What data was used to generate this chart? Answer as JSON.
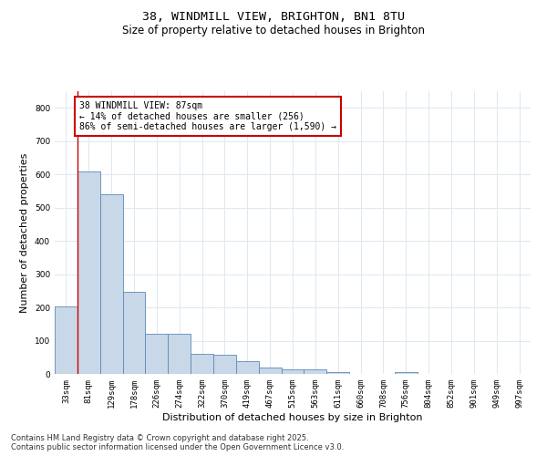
{
  "title_line1": "38, WINDMILL VIEW, BRIGHTON, BN1 8TU",
  "title_line2": "Size of property relative to detached houses in Brighton",
  "xlabel": "Distribution of detached houses by size in Brighton",
  "ylabel": "Number of detached properties",
  "categories": [
    "33sqm",
    "81sqm",
    "129sqm",
    "178sqm",
    "226sqm",
    "274sqm",
    "322sqm",
    "370sqm",
    "419sqm",
    "467sqm",
    "515sqm",
    "563sqm",
    "611sqm",
    "660sqm",
    "708sqm",
    "756sqm",
    "804sqm",
    "852sqm",
    "901sqm",
    "949sqm",
    "997sqm"
  ],
  "values": [
    203,
    608,
    540,
    248,
    120,
    120,
    60,
    58,
    38,
    20,
    15,
    13,
    5,
    0,
    0,
    5,
    0,
    0,
    0,
    0,
    0
  ],
  "bar_color": "#c8d8e8",
  "bar_edge_color": "#5b8ab5",
  "vline_color": "#cc0000",
  "annotation_text": "38 WINDMILL VIEW: 87sqm\n← 14% of detached houses are smaller (256)\n86% of semi-detached houses are larger (1,590) →",
  "annotation_box_color": "#ffffff",
  "annotation_box_edge_color": "#cc0000",
  "ylim": [
    0,
    850
  ],
  "yticks": [
    0,
    100,
    200,
    300,
    400,
    500,
    600,
    700,
    800
  ],
  "background_color": "#ffffff",
  "grid_color": "#dde8f0",
  "footnote": "Contains HM Land Registry data © Crown copyright and database right 2025.\nContains public sector information licensed under the Open Government Licence v3.0.",
  "title_fontsize": 9.5,
  "subtitle_fontsize": 8.5,
  "axis_label_fontsize": 8,
  "tick_fontsize": 6.5,
  "annotation_fontsize": 7,
  "footnote_fontsize": 6
}
